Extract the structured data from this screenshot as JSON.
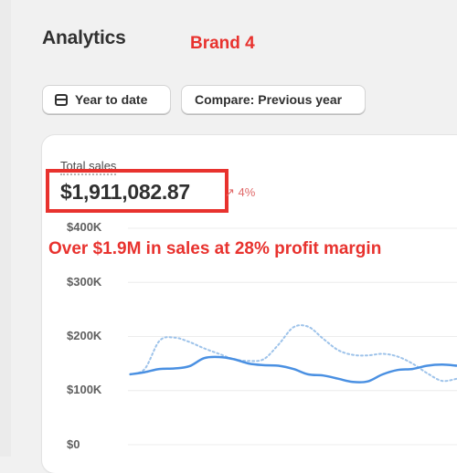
{
  "header": {
    "title": "Analytics",
    "note": "Brand 4"
  },
  "filters": {
    "date_label": "Year to date",
    "compare_label": "Compare: Previous year"
  },
  "metric": {
    "label": "Total sales",
    "value": "$1,911,082.87",
    "delta": "4%"
  },
  "annotation": "Over $1.9M in sales at 28% profit margin",
  "colors": {
    "annotation": "#e8322e",
    "current_series": "#4a90e2",
    "previous_series": "#9ec3ea"
  },
  "chart_data": {
    "type": "line",
    "title": "",
    "ylim": [
      0,
      400000
    ],
    "yticks": [
      {
        "value": 400000,
        "label": "$400K"
      },
      {
        "value": 300000,
        "label": "$300K"
      },
      {
        "value": 200000,
        "label": "$200K"
      },
      {
        "value": 100000,
        "label": "$100K"
      },
      {
        "value": 0,
        "label": "$0"
      }
    ],
    "grid": true,
    "series": [
      {
        "style": "solid",
        "values": [
          130000,
          134000,
          140000,
          141000,
          145000,
          160000,
          162000,
          158000,
          150000,
          147000,
          146000,
          140000,
          130000,
          128000,
          122000,
          116000,
          117000,
          130000,
          138000,
          140000,
          146000,
          148000,
          146000
        ]
      },
      {
        "style": "dotted",
        "values": [
          130000,
          140000,
          192000,
          198000,
          190000,
          178000,
          168000,
          158000,
          155000,
          158000,
          185000,
          217000,
          218000,
          196000,
          175000,
          166000,
          165000,
          168000,
          163000,
          150000,
          132000,
          118000,
          122000
        ]
      }
    ]
  }
}
